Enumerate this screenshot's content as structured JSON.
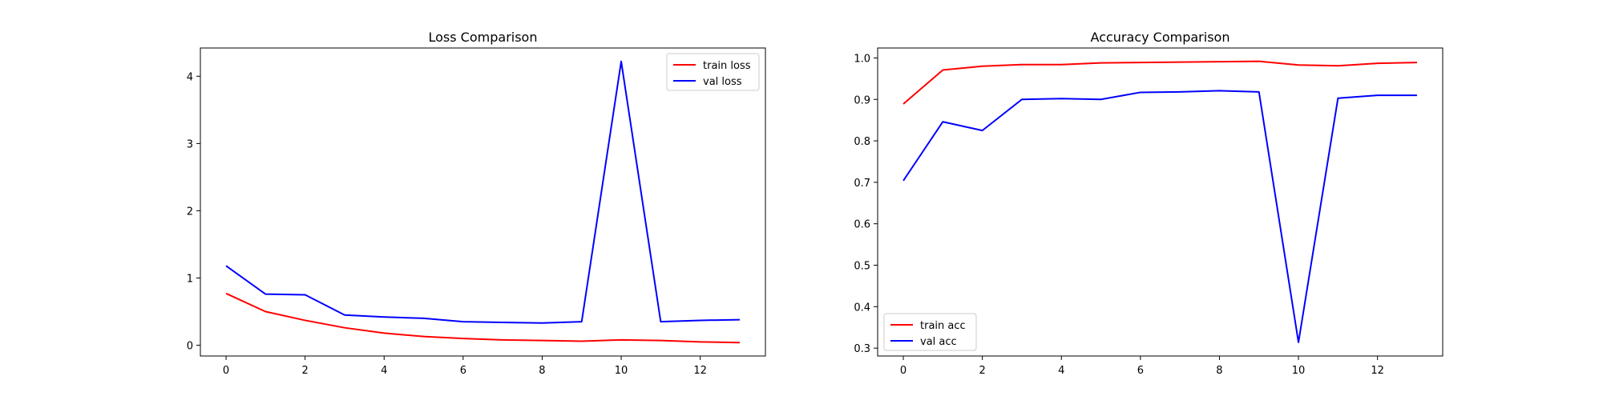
{
  "chart_data": [
    {
      "type": "line",
      "title": "Loss Comparison",
      "xlabel": "",
      "ylabel": "",
      "xlim": [
        -0.65,
        13.65
      ],
      "ylim": [
        -0.16,
        4.42
      ],
      "xticks": [
        0,
        2,
        4,
        6,
        8,
        10,
        12
      ],
      "yticks": [
        0,
        1,
        2,
        3,
        4
      ],
      "legend_position": "top-right",
      "grid": false,
      "x": [
        0,
        1,
        2,
        3,
        4,
        5,
        6,
        7,
        8,
        9,
        10,
        11,
        12,
        13
      ],
      "series": [
        {
          "name": "train loss",
          "color": "#ff0000",
          "values": [
            0.77,
            0.5,
            0.37,
            0.26,
            0.18,
            0.13,
            0.1,
            0.08,
            0.07,
            0.06,
            0.08,
            0.07,
            0.05,
            0.04
          ]
        },
        {
          "name": "val loss",
          "color": "#0000ff",
          "values": [
            1.18,
            0.76,
            0.75,
            0.45,
            0.42,
            0.4,
            0.35,
            0.34,
            0.33,
            0.35,
            4.22,
            0.35,
            0.37,
            0.38
          ]
        }
      ]
    },
    {
      "type": "line",
      "title": "Accuracy Comparison",
      "xlabel": "",
      "ylabel": "",
      "xlim": [
        -0.65,
        13.65
      ],
      "ylim": [
        0.281,
        1.024
      ],
      "xticks": [
        0,
        2,
        4,
        6,
        8,
        10,
        12
      ],
      "yticks": [
        0.3,
        0.4,
        0.5,
        0.6,
        0.7,
        0.8,
        0.9,
        1.0
      ],
      "legend_position": "bottom-left",
      "grid": false,
      "x": [
        0,
        1,
        2,
        3,
        4,
        5,
        6,
        7,
        8,
        9,
        10,
        11,
        12,
        13
      ],
      "series": [
        {
          "name": "train acc",
          "color": "#ff0000",
          "values": [
            0.889,
            0.971,
            0.98,
            0.984,
            0.984,
            0.988,
            0.989,
            0.99,
            0.991,
            0.992,
            0.983,
            0.981,
            0.987,
            0.989
          ]
        },
        {
          "name": "val acc",
          "color": "#0000ff",
          "values": [
            0.704,
            0.846,
            0.825,
            0.9,
            0.902,
            0.9,
            0.917,
            0.918,
            0.921,
            0.918,
            0.314,
            0.903,
            0.91,
            0.91
          ]
        }
      ]
    }
  ]
}
